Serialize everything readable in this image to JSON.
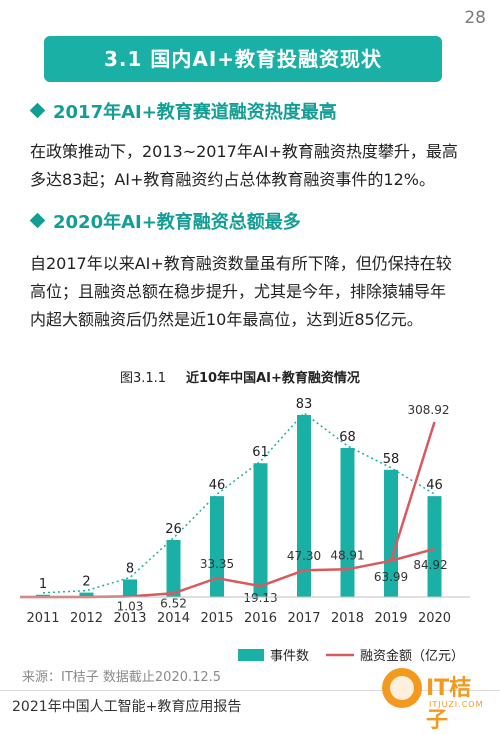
{
  "page_number": "28",
  "title": "3.1  国内AI+教育投融资现状",
  "section1": {
    "heading": "2017年AI+教育赛道融资热度最高",
    "lines": [
      "在政策推动下，2013~2017年AI+教育融资热度攀升，最高",
      "多达83起；AI+教育融资约占总体教育融资事件的12%。"
    ]
  },
  "section2": {
    "heading": "2020年AI+教育融资总额最多",
    "lines": [
      "自2017年以来AI+教育融资数量虽有所下降，但仍保持在较",
      "高位；且融资总额在稳步提升，尤其是今年，排除猿辅导年",
      "内超大额融资后仍然是近10年最高位，达到近85亿元。"
    ]
  },
  "chart_data": {
    "type": "bar",
    "title_prefix": "图3.1.1",
    "title": "近10年中国AI+教育融资情况",
    "categories": [
      "2011",
      "2012",
      "2013",
      "2014",
      "2015",
      "2016",
      "2017",
      "2018",
      "2019",
      "2020"
    ],
    "series": [
      {
        "name": "事件数",
        "type": "bar",
        "color": "#1ab0a5",
        "values": [
          1,
          2,
          8,
          26,
          46,
          61,
          83,
          68,
          58,
          46
        ]
      },
      {
        "name": "融资金额（亿元）",
        "type": "line",
        "color": "#d9595e",
        "values": [
          null,
          null,
          1.03,
          6.52,
          33.35,
          19.13,
          47.3,
          48.91,
          63.99,
          308.92
        ],
        "labels": [
          "",
          "",
          "1.03",
          "6.52",
          "33.35",
          "19.13",
          "47.30",
          "48.91",
          "63.99",
          "308.92"
        ]
      },
      {
        "type": "line",
        "color": "#d9595e",
        "values": [
          84.92
        ],
        "x": [
          "2020"
        ],
        "labels": [
          "84.92"
        ]
      }
    ],
    "trend_line": {
      "style": "dotted",
      "color": "#1ab0a5",
      "values": [
        1,
        2,
        8,
        26,
        46,
        61,
        83,
        68,
        58,
        46
      ]
    },
    "legend_position": "bottom",
    "grid": false
  },
  "source": "来源：IT桔子 数据截止2020.12.5",
  "footer": "2021年中国人工智能+教育应用报告",
  "logo": {
    "text": "IT桔子",
    "sub": "ITJUZI.COM"
  }
}
